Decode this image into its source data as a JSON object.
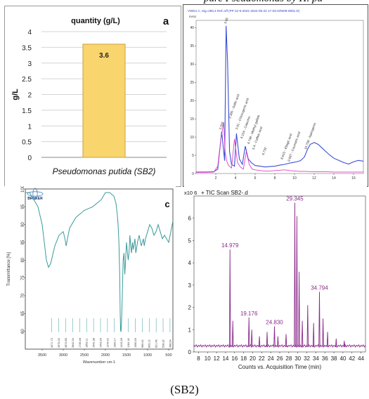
{
  "caption": "(SB2)",
  "top_cropped_text": "pure Pseudomonas by H. pu",
  "chart_data": [
    {
      "panel_letter": "a",
      "type": "bar",
      "title": "quantity (g/L)",
      "ylabel": "g/L",
      "categories": [
        "Pseudomonas putida (SB2)"
      ],
      "values": [
        3.6
      ],
      "data_labels": [
        "3.6"
      ],
      "ylim": [
        0,
        4
      ],
      "yticks": [
        "0",
        "0.5",
        "1",
        "1.5",
        "2",
        "2.5",
        "3",
        "3.5",
        "4"
      ],
      "grid": true,
      "bar_color": "#f9d56e",
      "bar_edge_color": "#c9a240"
    },
    {
      "type": "line",
      "header": "VWD1 A, Sig=280,4 Ref=off (PP 22-5-2022 2022-05-22 17-03-03\\009-0901.D)",
      "unit": "mAU",
      "xlim": [
        0,
        17
      ],
      "ylim": [
        0,
        42
      ],
      "xticks": [
        "2",
        "4",
        "6",
        "8",
        "10",
        "12",
        "14",
        "16"
      ],
      "yticks": [
        "0",
        "5",
        "10",
        "15",
        "20",
        "25",
        "30",
        "35",
        "40"
      ],
      "series": [
        {
          "color": "#3a4fd6",
          "x": [
            0,
            1,
            1.8,
            2.2,
            2.6,
            2.9,
            3.05,
            3.2,
            3.4,
            3.6,
            3.9,
            4.1,
            4.4,
            4.7,
            5.0,
            5.3,
            5.6,
            6.0,
            6.5,
            7.0,
            7.5,
            8.0,
            8.5,
            9.0,
            9.4,
            9.8,
            10.2,
            10.6,
            11.0,
            11.3,
            11.6,
            12.0,
            12.4,
            12.8,
            13.2,
            13.6,
            14.0,
            14.5,
            15.0,
            15.5,
            16.0,
            16.5,
            17.0
          ],
          "y": [
            0.4,
            0.4,
            0.5,
            1.2,
            11.5,
            3.5,
            40.5,
            30.5,
            6.0,
            2.5,
            2.0,
            11.0,
            4.0,
            2.5,
            7.5,
            4.0,
            3.0,
            2.2,
            2.0,
            1.8,
            1.9,
            2.0,
            2.3,
            2.5,
            2.8,
            3.0,
            3.2,
            3.5,
            4.5,
            6.5,
            8.0,
            8.5,
            8.0,
            7.0,
            6.0,
            5.0,
            4.2,
            3.6,
            3.0,
            2.6,
            3.2,
            3.6,
            3.4
          ]
        },
        {
          "color": "#e040c8",
          "x": [
            0,
            1,
            1.8,
            2.2,
            2.5,
            2.8,
            2.95,
            3.1,
            3.3,
            3.6,
            3.9,
            4.2,
            4.5,
            4.8,
            5.1,
            5.4,
            5.7,
            6.0,
            6.5,
            7.0,
            7.5,
            8.0,
            8.5,
            9.0,
            9.5,
            10.0,
            10.5,
            11.0,
            12.0,
            13.0,
            14.0,
            15.0,
            16.0,
            17.0
          ],
          "y": [
            0.3,
            0.3,
            0.4,
            2.0,
            9.0,
            14.0,
            6.0,
            3.5,
            2.2,
            1.5,
            9.5,
            3.0,
            1.8,
            1.2,
            6.0,
            2.5,
            1.2,
            1.0,
            0.8,
            0.7,
            0.7,
            0.8,
            0.9,
            1.0,
            0.8,
            0.7,
            0.6,
            0.6,
            0.5,
            0.5,
            0.4,
            0.4,
            0.4,
            0.4
          ]
        }
      ],
      "annotations": [
        {
          "x": 2.55,
          "y": 12,
          "text": "2.555"
        },
        {
          "x": 3.05,
          "y": 41,
          "text": "3.05"
        },
        {
          "x": 3.5,
          "y": 15,
          "text": "3.385 - Gallic acid"
        },
        {
          "x": 4.2,
          "y": 12,
          "text": "3.91 - Chlorogenic acid"
        },
        {
          "x": 4.7,
          "y": 9.5,
          "text": "4.154 - Catechin"
        },
        {
          "x": 5.4,
          "y": 8,
          "text": "4.748 - Methyl gallate"
        },
        {
          "x": 5.9,
          "y": 6.5,
          "text": "5.4 - Caffeic acid"
        },
        {
          "x": 6.9,
          "y": 5,
          "text": "6.732"
        },
        {
          "x": 8.8,
          "y": 3.8,
          "text": "8.615 - Ellagic acid"
        },
        {
          "x": 9.5,
          "y": 3.2,
          "text": "9.687 - Coumaric acid"
        },
        {
          "x": 11.2,
          "y": 6.5,
          "text": "10.758 - Naringenin"
        }
      ]
    },
    {
      "panel_letter": "c",
      "type": "line",
      "logo_text": "BRUKER",
      "xlabel": "Wavenumber cm-1",
      "ylabel": "Transmittance [%]",
      "xlim": [
        3900,
        400
      ],
      "ylim": [
        55,
        100
      ],
      "xticks": [
        "3500",
        "3000",
        "2500",
        "2000",
        "1500",
        "1000",
        "500"
      ],
      "yticks": [
        "60",
        "65",
        "70",
        "75",
        "80",
        "85",
        "90",
        "95",
        "100"
      ],
      "series": [
        {
          "color": "#3a9a9a",
          "x": [
            3900,
            3800,
            3700,
            3600,
            3500,
            3450,
            3400,
            3350,
            3300,
            3200,
            3100,
            3000,
            2960,
            2930,
            2900,
            2850,
            2700,
            2500,
            2300,
            2100,
            2000,
            1900,
            1800,
            1750,
            1720,
            1700,
            1680,
            1660,
            1650,
            1640,
            1620,
            1600,
            1580,
            1560,
            1540,
            1500,
            1460,
            1440,
            1420,
            1400,
            1380,
            1360,
            1340,
            1300,
            1280,
            1240,
            1200,
            1150,
            1100,
            1080,
            1050,
            1000,
            950,
            900,
            850,
            800,
            750,
            700,
            650,
            600,
            550,
            500,
            450,
            400
          ],
          "y": [
            99,
            99,
            97,
            95,
            90,
            85,
            80,
            78,
            79,
            84,
            87,
            88,
            86,
            84,
            86,
            89,
            92,
            94,
            95,
            97,
            99,
            99,
            98,
            96,
            93,
            90,
            85,
            75,
            65,
            60,
            62,
            70,
            80,
            82,
            76,
            85,
            80,
            82,
            87,
            84,
            82,
            85,
            83,
            86,
            82,
            85,
            87,
            84,
            86,
            84,
            86,
            88,
            90,
            89,
            87,
            88,
            90,
            88,
            86,
            87,
            86,
            85,
            88,
            91
          ]
        }
      ],
      "peak_labels": [
        "3271.73",
        "2975.34",
        "2872.85",
        "2842.34",
        "1735.48",
        "1653.11",
        "1542.38",
        "1453.26",
        "1376.42",
        "1300.17",
        "1243.28",
        "1164.18",
        "1050.25",
        "960.42",
        "829.12",
        "621.48",
        "528.32",
        "468.54"
      ]
    },
    {
      "type": "line",
      "title": "+ TIC Scan SB2-.d",
      "y_multiplier": "x10 6",
      "xlabel": "Counts vs. Acquisition Time (min)",
      "xlim": [
        7,
        45
      ],
      "ylim": [
        0,
        7
      ],
      "xticks": [
        "8",
        "10",
        "12",
        "14",
        "16",
        "18",
        "20",
        "22",
        "24",
        "26",
        "28",
        "30",
        "32",
        "34",
        "36",
        "38",
        "40",
        "42",
        "44"
      ],
      "yticks": [
        "0",
        "1",
        "2",
        "3",
        "4",
        "5",
        "6"
      ],
      "series": [
        {
          "color": "#8a2a8a",
          "peaks": [
            [
              14.979,
              4.6
            ],
            [
              15.6,
              1.4
            ],
            [
              19.176,
              1.55
            ],
            [
              19.8,
              1.0
            ],
            [
              21.5,
              0.7
            ],
            [
              23.2,
              0.9
            ],
            [
              24.83,
              1.15
            ],
            [
              25.6,
              0.7
            ],
            [
              27.4,
              0.8
            ],
            [
              29.345,
              6.7
            ],
            [
              29.8,
              6.1
            ],
            [
              30.3,
              3.6
            ],
            [
              31.0,
              1.4
            ],
            [
              32.2,
              2.1
            ],
            [
              33.5,
              1.3
            ],
            [
              34.794,
              2.7
            ],
            [
              35.6,
              1.5
            ],
            [
              36.6,
              0.9
            ],
            [
              38.5,
              0.6
            ],
            [
              40.3,
              0.5
            ]
          ]
        }
      ],
      "peak_labels": [
        "14.979",
        "19.176",
        "24.830",
        "29.345",
        "34.794"
      ]
    }
  ]
}
